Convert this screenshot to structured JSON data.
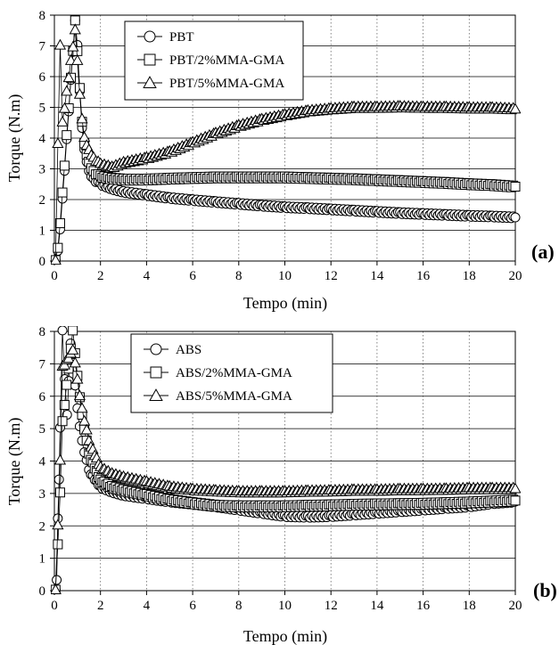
{
  "chart_data": [
    {
      "type": "scatter",
      "panel_label": "(a)",
      "xlabel": "Tempo (min)",
      "ylabel": "Torque (N.m)",
      "xlim": [
        0,
        20
      ],
      "ylim": [
        0,
        8
      ],
      "xticks": [
        "0",
        "2",
        "4",
        "6",
        "8",
        "10",
        "12",
        "14",
        "16",
        "18",
        "20"
      ],
      "yticks": [
        "0",
        "1",
        "2",
        "3",
        "4",
        "5",
        "6",
        "7",
        "8"
      ],
      "grid": {
        "horizontal": "solid",
        "vertical": "dotted"
      },
      "legend_position": "top-left",
      "series": [
        {
          "name": "PBT",
          "marker": "circle",
          "x": [
            0.05,
            0.15,
            0.25,
            0.35,
            0.9,
            1.0,
            1.1,
            1.2,
            1.3,
            1.4,
            1.5,
            1.7,
            2.0,
            2.5,
            3.0,
            4.0,
            5.0,
            6.0,
            7.0,
            8.0,
            9.0,
            10.0,
            11.0,
            12.0,
            13.0,
            14.0,
            15.0,
            16.0,
            17.0,
            18.0,
            19.0,
            20.0
          ],
          "y": [
            0.0,
            0.3,
            1.0,
            2.0,
            7.8,
            7.0,
            5.5,
            4.3,
            3.6,
            3.2,
            2.9,
            2.65,
            2.5,
            2.35,
            2.25,
            2.15,
            2.05,
            1.98,
            1.92,
            1.86,
            1.8,
            1.75,
            1.72,
            1.68,
            1.64,
            1.6,
            1.56,
            1.53,
            1.5,
            1.47,
            1.45,
            1.42
          ]
        },
        {
          "name": "PBT/2%MMA-GMA",
          "marker": "square",
          "x": [
            0.05,
            0.15,
            0.25,
            0.35,
            0.9,
            1.0,
            1.1,
            1.2,
            1.3,
            1.5,
            1.7,
            2.0,
            2.5,
            3.0,
            4.0,
            5.0,
            6.0,
            7.0,
            8.0,
            9.0,
            10.0,
            11.0,
            12.0,
            13.0,
            14.0,
            15.0,
            16.0,
            17.0,
            18.0,
            19.0,
            20.0
          ],
          "y": [
            0.0,
            0.4,
            1.2,
            2.2,
            7.8,
            6.8,
            5.6,
            4.5,
            3.8,
            3.2,
            2.9,
            2.75,
            2.68,
            2.65,
            2.65,
            2.68,
            2.7,
            2.72,
            2.72,
            2.72,
            2.72,
            2.7,
            2.68,
            2.66,
            2.63,
            2.6,
            2.57,
            2.54,
            2.5,
            2.47,
            2.42
          ]
        },
        {
          "name": "PBT/5%MMA-GMA",
          "marker": "triangle",
          "x": [
            0.05,
            0.15,
            0.25,
            0.35,
            0.9,
            1.0,
            1.1,
            1.2,
            1.3,
            1.5,
            1.7,
            2.0,
            2.5,
            3.0,
            4.0,
            5.0,
            6.0,
            7.0,
            8.0,
            9.0,
            10.0,
            11.0,
            12.0,
            13.0,
            14.0,
            15.0,
            16.0,
            17.0,
            18.0,
            19.0,
            20.0
          ],
          "y": [
            0.0,
            3.8,
            7.0,
            4.5,
            7.5,
            6.5,
            5.4,
            4.6,
            4.0,
            3.6,
            3.35,
            3.15,
            3.05,
            3.2,
            3.35,
            3.55,
            3.85,
            4.15,
            4.4,
            4.6,
            4.75,
            4.88,
            4.95,
            5.0,
            5.0,
            5.02,
            5.0,
            5.0,
            4.98,
            4.98,
            4.95
          ]
        }
      ]
    },
    {
      "type": "scatter",
      "panel_label": "(b)",
      "xlabel": "Tempo (min)",
      "ylabel": "Torque (N.m)",
      "xlim": [
        0,
        20
      ],
      "ylim": [
        0,
        8
      ],
      "xticks": [
        "0",
        "2",
        "4",
        "6",
        "8",
        "10",
        "12",
        "14",
        "16",
        "18",
        "20"
      ],
      "yticks": [
        "0",
        "1",
        "2",
        "3",
        "4",
        "5",
        "6",
        "7",
        "8"
      ],
      "grid": {
        "horizontal": "solid",
        "vertical": "dotted"
      },
      "legend_position": "top-center",
      "series": [
        {
          "name": "ABS",
          "marker": "circle",
          "x": [
            0.05,
            0.1,
            0.15,
            0.2,
            0.25,
            0.35,
            0.45,
            0.55,
            0.7,
            0.8,
            0.9,
            1.0,
            1.2,
            1.5,
            2.0,
            2.5,
            3.0,
            4.0,
            5.0,
            6.0,
            7.0,
            8.0,
            9.0,
            10.0,
            11.0,
            12.0,
            13.0,
            14.0,
            15.0,
            16.0,
            17.0,
            18.0,
            19.0,
            20.0
          ],
          "y": [
            0.0,
            0.3,
            2.2,
            3.4,
            5.0,
            8.0,
            6.5,
            5.4,
            7.6,
            7.0,
            6.3,
            5.6,
            4.6,
            3.7,
            3.2,
            3.05,
            2.95,
            2.85,
            2.75,
            2.68,
            2.6,
            2.5,
            2.4,
            2.3,
            2.28,
            2.3,
            2.35,
            2.4,
            2.45,
            2.5,
            2.55,
            2.6,
            2.7,
            2.75
          ]
        },
        {
          "name": "ABS/2%MMA-GMA",
          "marker": "square",
          "x": [
            0.05,
            0.15,
            0.25,
            0.35,
            0.8,
            0.9,
            1.0,
            1.2,
            1.5,
            2.0,
            2.5,
            3.0,
            4.0,
            5.0,
            6.0,
            7.0,
            8.0,
            9.0,
            10.0,
            11.0,
            12.0,
            13.0,
            14.0,
            15.0,
            16.0,
            17.0,
            18.0,
            19.0,
            20.0
          ],
          "y": [
            0.0,
            1.4,
            3.0,
            5.2,
            8.0,
            7.3,
            6.6,
            5.4,
            4.2,
            3.4,
            3.2,
            3.1,
            2.95,
            2.8,
            2.7,
            2.62,
            2.6,
            2.6,
            2.6,
            2.62,
            2.63,
            2.65,
            2.66,
            2.67,
            2.68,
            2.7,
            2.72,
            2.75,
            2.78
          ]
        },
        {
          "name": "ABS/5%MMA-GMA",
          "marker": "triangle",
          "x": [
            0.05,
            0.15,
            0.25,
            0.35,
            0.8,
            0.9,
            1.0,
            1.2,
            1.5,
            2.0,
            2.5,
            3.0,
            4.0,
            5.0,
            6.0,
            7.0,
            8.0,
            9.0,
            10.0,
            11.0,
            12.0,
            13.0,
            14.0,
            15.0,
            16.0,
            17.0,
            18.0,
            19.0,
            20.0
          ],
          "y": [
            0.0,
            2.0,
            4.0,
            6.9,
            7.4,
            7.0,
            6.5,
            5.6,
            4.6,
            3.8,
            3.6,
            3.5,
            3.35,
            3.2,
            3.12,
            3.08,
            3.05,
            3.05,
            3.05,
            3.07,
            3.08,
            3.1,
            3.1,
            3.12,
            3.12,
            3.13,
            3.15,
            3.15,
            3.15
          ]
        }
      ]
    }
  ]
}
